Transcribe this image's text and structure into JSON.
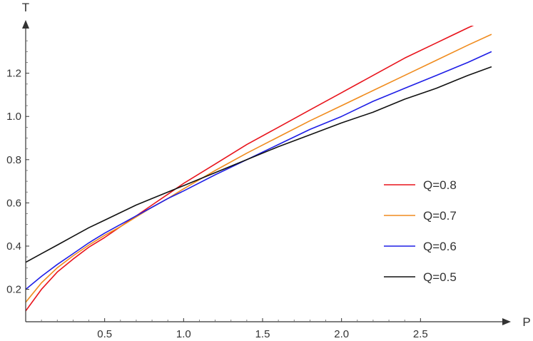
{
  "chart_data": {
    "type": "line",
    "xlabel": "P",
    "ylabel": "T",
    "xlim": [
      0,
      3.0
    ],
    "ylim": [
      0.05,
      1.42
    ],
    "x_ticks": [
      0.5,
      1.0,
      1.5,
      2.0,
      2.5
    ],
    "x_tick_labels": [
      "0.5",
      "1.0",
      "1.5",
      "2.0",
      "2.5"
    ],
    "y_ticks": [
      0.2,
      0.4,
      0.6,
      0.8,
      1.0,
      1.2
    ],
    "y_tick_labels": [
      "0.2",
      "0.4",
      "0.6",
      "0.8",
      "1.0",
      "1.2"
    ],
    "grid": false,
    "legend_position": "right",
    "series": [
      {
        "name": "Q=0.8",
        "color": "#e8141c",
        "x": [
          0.0,
          0.1,
          0.2,
          0.3,
          0.4,
          0.5,
          0.6,
          0.7,
          0.8,
          0.9,
          1.0,
          1.2,
          1.4,
          1.6,
          1.8,
          2.0,
          2.2,
          2.4,
          2.6,
          2.8,
          2.95
        ],
        "y": [
          0.1,
          0.2,
          0.28,
          0.34,
          0.395,
          0.44,
          0.49,
          0.54,
          0.59,
          0.64,
          0.69,
          0.78,
          0.87,
          0.95,
          1.03,
          1.11,
          1.19,
          1.27,
          1.34,
          1.41,
          1.46
        ]
      },
      {
        "name": "Q=0.7",
        "color": "#f08c1e",
        "x": [
          0.0,
          0.1,
          0.2,
          0.3,
          0.4,
          0.5,
          0.6,
          0.7,
          0.8,
          0.9,
          1.0,
          1.2,
          1.4,
          1.6,
          1.8,
          2.0,
          2.2,
          2.4,
          2.6,
          2.8,
          2.95
        ],
        "y": [
          0.14,
          0.23,
          0.3,
          0.355,
          0.405,
          0.45,
          0.49,
          0.535,
          0.58,
          0.62,
          0.665,
          0.75,
          0.83,
          0.905,
          0.98,
          1.05,
          1.12,
          1.19,
          1.26,
          1.33,
          1.38
        ]
      },
      {
        "name": "Q=0.6",
        "color": "#1e1ee6",
        "x": [
          0.0,
          0.1,
          0.2,
          0.3,
          0.4,
          0.5,
          0.6,
          0.7,
          0.8,
          0.9,
          1.0,
          1.2,
          1.4,
          1.6,
          1.8,
          2.0,
          2.2,
          2.4,
          2.6,
          2.8,
          2.95
        ],
        "y": [
          0.2,
          0.26,
          0.315,
          0.365,
          0.415,
          0.46,
          0.5,
          0.54,
          0.58,
          0.62,
          0.655,
          0.73,
          0.8,
          0.87,
          0.94,
          1.0,
          1.07,
          1.13,
          1.19,
          1.25,
          1.3
        ]
      },
      {
        "name": "Q=0.5",
        "color": "#111111",
        "x": [
          0.0,
          0.1,
          0.2,
          0.3,
          0.4,
          0.5,
          0.6,
          0.7,
          0.8,
          0.9,
          1.0,
          1.2,
          1.4,
          1.6,
          1.8,
          2.0,
          2.2,
          2.4,
          2.6,
          2.8,
          2.95
        ],
        "y": [
          0.325,
          0.365,
          0.405,
          0.445,
          0.485,
          0.52,
          0.555,
          0.59,
          0.62,
          0.65,
          0.68,
          0.74,
          0.8,
          0.86,
          0.915,
          0.97,
          1.02,
          1.08,
          1.13,
          1.19,
          1.23
        ]
      }
    ]
  }
}
